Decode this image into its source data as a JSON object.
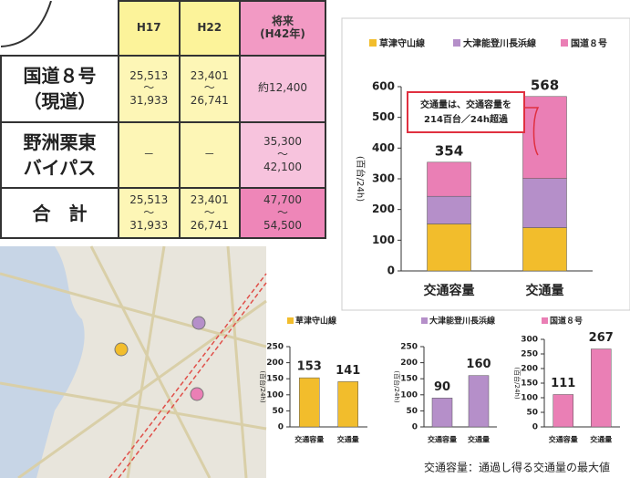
{
  "table": {
    "header": [
      "H17",
      "H22",
      [
        "将来",
        "(H42年)"
      ]
    ],
    "rows": [
      {
        "label": [
          "国道８号",
          "（現道）"
        ],
        "cells": [
          [
            "25,513",
            "～",
            "31,933"
          ],
          [
            "23,401",
            "～",
            "26,741"
          ],
          [
            "約12,400"
          ]
        ]
      },
      {
        "label": [
          "野洲栗東",
          "バイパス"
        ],
        "cells": [
          [
            "－"
          ],
          [
            "－"
          ],
          [
            "35,300",
            "～",
            "42,100"
          ]
        ]
      },
      {
        "label": [
          "合　計"
        ],
        "cells": [
          [
            "25,513",
            "～",
            "31,933"
          ],
          [
            "23,401",
            "～",
            "26,741"
          ],
          [
            "47,700",
            "～",
            "54,500"
          ]
        ]
      }
    ]
  },
  "chart_data": [
    {
      "type": "bar",
      "stacked": true,
      "y_label": "(百台/24h)",
      "categories": [
        "交通容量",
        "交通量"
      ],
      "series": [
        {
          "name": "草津守山線",
          "color": "#f2bd2c",
          "values": [
            153,
            141
          ]
        },
        {
          "name": "大津能登川長浜線",
          "color": "#b58fc9",
          "values": [
            90,
            160
          ]
        },
        {
          "name": "国道８号",
          "color": "#ea7fb5",
          "values": [
            111,
            267
          ]
        }
      ],
      "totals": [
        354,
        568
      ],
      "annotation": [
        "交通量は、交通容量を",
        "214百台／24h超過"
      ],
      "ylim": [
        0,
        600
      ],
      "yticks": [
        0,
        100,
        200,
        300,
        400,
        500,
        600
      ]
    },
    {
      "type": "bar",
      "title": "草津守山線",
      "color": "#f2bd2c",
      "y_label": "(百台/24h)",
      "categories": [
        "交通容量",
        "交通量"
      ],
      "values": [
        153,
        141
      ],
      "ylim": [
        0,
        250
      ],
      "yticks": [
        0,
        50,
        100,
        150,
        200,
        250
      ]
    },
    {
      "type": "bar",
      "title": "大津能登川長浜線",
      "color": "#b58fc9",
      "y_label": "(百台/24h)",
      "categories": [
        "交通容量",
        "交通量"
      ],
      "values": [
        90,
        160
      ],
      "ylim": [
        0,
        250
      ],
      "yticks": [
        0,
        50,
        100,
        150,
        200,
        250
      ]
    },
    {
      "type": "bar",
      "title": "国道８号",
      "color": "#ea7fb5",
      "y_label": "(百台/24h)",
      "categories": [
        "交通容量",
        "交通量"
      ],
      "values": [
        111,
        267
      ],
      "ylim": [
        0,
        300
      ],
      "yticks": [
        0,
        50,
        100,
        150,
        200,
        250,
        300
      ]
    }
  ],
  "footnote": "交通容量：通過し得る交通量の最大値"
}
